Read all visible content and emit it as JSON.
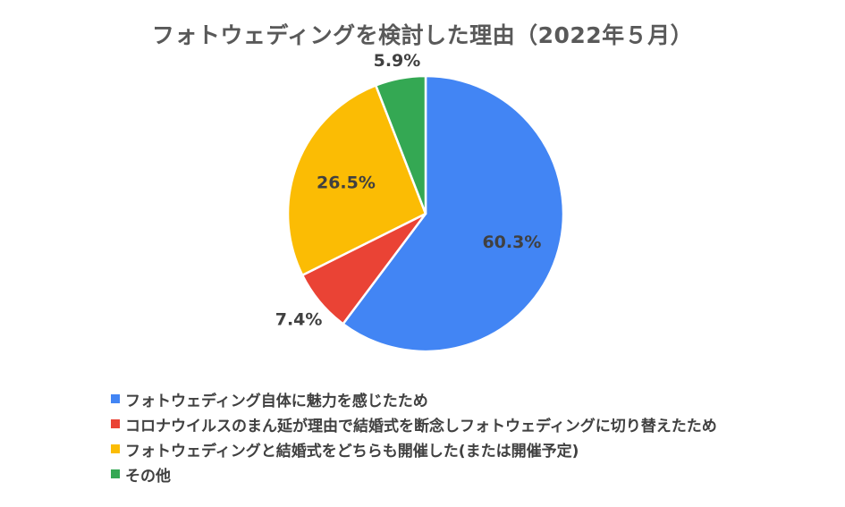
{
  "chart_data": {
    "type": "pie",
    "title": "フォトウェディングを検討した理由（2022年５月）",
    "categories": [
      "フォトウェディング自体に魅力を感じたため",
      "コロナウイルスのまん延が理由で結婚式を断念しフォトウェディングに切り替えたため",
      "フォトウェディングと結婚式をどちらも開催した(または開催予定)",
      "その他"
    ],
    "values": [
      60.3,
      7.4,
      26.5,
      5.9
    ],
    "data_labels": [
      "60.3%",
      "7.4%",
      "26.5%",
      "5.9%"
    ],
    "colors": [
      "#4285F4",
      "#EA4335",
      "#FBBC04",
      "#34A853"
    ],
    "unit": "%",
    "start_angle_deg": 0,
    "direction": "clockwise",
    "legend": "bottom-left"
  }
}
